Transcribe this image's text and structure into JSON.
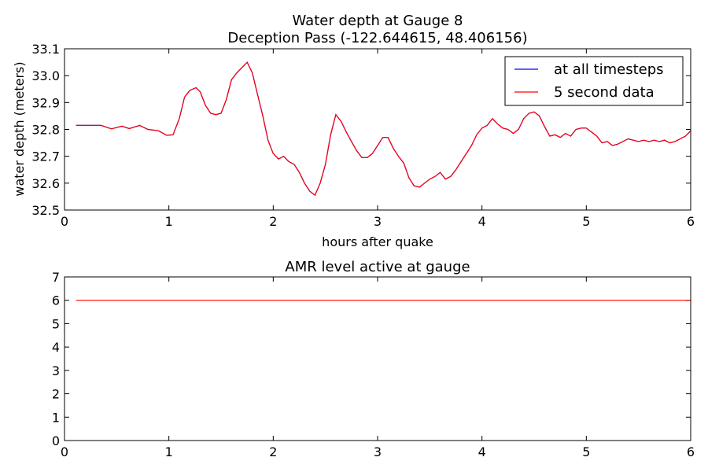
{
  "chart_data": [
    {
      "type": "line",
      "title": "Water depth at Gauge 8",
      "subtitle": "Deception Pass  (-122.644615, 48.406156)",
      "xlabel": "hours after quake",
      "ylabel": "water depth (meters)",
      "xlim": [
        0,
        6
      ],
      "ylim": [
        32.5,
        33.1
      ],
      "x_ticks": [
        "0",
        "1",
        "2",
        "3",
        "4",
        "5",
        "6"
      ],
      "y_ticks": [
        "32.5",
        "32.6",
        "32.7",
        "32.8",
        "32.9",
        "33.0",
        "33.1"
      ],
      "grid": false,
      "legend_position": "top-right",
      "x": [
        0.11,
        0.35,
        0.45,
        0.55,
        0.62,
        0.72,
        0.8,
        0.9,
        0.98,
        1.04,
        1.1,
        1.15,
        1.2,
        1.26,
        1.3,
        1.35,
        1.4,
        1.45,
        1.5,
        1.55,
        1.6,
        1.65,
        1.7,
        1.75,
        1.8,
        1.85,
        1.9,
        1.95,
        2.0,
        2.05,
        2.1,
        2.15,
        2.2,
        2.25,
        2.3,
        2.35,
        2.4,
        2.45,
        2.5,
        2.55,
        2.6,
        2.65,
        2.7,
        2.75,
        2.8,
        2.85,
        2.9,
        2.95,
        3.0,
        3.05,
        3.1,
        3.15,
        3.2,
        3.25,
        3.3,
        3.35,
        3.4,
        3.45,
        3.5,
        3.55,
        3.6,
        3.65,
        3.7,
        3.75,
        3.8,
        3.85,
        3.9,
        3.95,
        4.0,
        4.05,
        4.1,
        4.15,
        4.2,
        4.25,
        4.3,
        4.35,
        4.4,
        4.45,
        4.5,
        4.55,
        4.6,
        4.65,
        4.7,
        4.75,
        4.8,
        4.85,
        4.9,
        4.95,
        5.0,
        5.05,
        5.1,
        5.15,
        5.2,
        5.25,
        5.3,
        5.35,
        5.4,
        5.45,
        5.5,
        5.55,
        5.6,
        5.65,
        5.7,
        5.75,
        5.8,
        5.85,
        5.9,
        5.95,
        6.0
      ],
      "series": [
        {
          "name": "at all timesteps",
          "color": "#0000ff",
          "y": [
            32.815,
            32.815,
            32.802,
            32.812,
            32.803,
            32.815,
            32.8,
            32.795,
            32.778,
            32.78,
            32.84,
            32.92,
            32.945,
            32.955,
            32.94,
            32.89,
            32.86,
            32.855,
            32.86,
            32.91,
            32.985,
            33.01,
            33.03,
            33.05,
            33.01,
            32.93,
            32.85,
            32.76,
            32.71,
            32.69,
            32.7,
            32.68,
            32.67,
            32.64,
            32.6,
            32.57,
            32.555,
            32.6,
            32.67,
            32.78,
            32.855,
            32.83,
            32.79,
            32.755,
            32.72,
            32.695,
            32.695,
            32.71,
            32.74,
            32.77,
            32.77,
            32.73,
            32.7,
            32.675,
            32.62,
            32.59,
            32.585,
            32.6,
            32.615,
            32.625,
            32.64,
            32.615,
            32.625,
            32.65,
            32.68,
            32.71,
            32.74,
            32.78,
            32.805,
            32.815,
            32.84,
            32.82,
            32.805,
            32.8,
            32.785,
            32.8,
            32.84,
            32.86,
            32.865,
            32.85,
            32.81,
            32.775,
            32.78,
            32.77,
            32.785,
            32.775,
            32.8,
            32.805,
            32.805,
            32.79,
            32.775,
            32.75,
            32.755,
            32.74,
            32.745,
            32.755,
            32.765,
            32.76,
            32.755,
            32.76,
            32.755,
            32.76,
            32.755,
            32.76,
            32.75,
            32.755,
            32.765,
            32.775,
            32.795
          ]
        },
        {
          "name": "5 second data",
          "color": "#ff0000",
          "y": [
            32.815,
            32.815,
            32.802,
            32.812,
            32.803,
            32.815,
            32.8,
            32.795,
            32.778,
            32.78,
            32.84,
            32.92,
            32.945,
            32.955,
            32.94,
            32.89,
            32.86,
            32.855,
            32.86,
            32.91,
            32.985,
            33.01,
            33.03,
            33.05,
            33.01,
            32.93,
            32.85,
            32.76,
            32.71,
            32.69,
            32.7,
            32.68,
            32.67,
            32.64,
            32.6,
            32.57,
            32.555,
            32.6,
            32.67,
            32.78,
            32.855,
            32.83,
            32.79,
            32.755,
            32.72,
            32.695,
            32.695,
            32.71,
            32.74,
            32.77,
            32.77,
            32.73,
            32.7,
            32.675,
            32.62,
            32.59,
            32.585,
            32.6,
            32.615,
            32.625,
            32.64,
            32.615,
            32.625,
            32.65,
            32.68,
            32.71,
            32.74,
            32.78,
            32.805,
            32.815,
            32.84,
            32.82,
            32.805,
            32.8,
            32.785,
            32.8,
            32.84,
            32.86,
            32.865,
            32.85,
            32.81,
            32.775,
            32.78,
            32.77,
            32.785,
            32.775,
            32.8,
            32.805,
            32.805,
            32.79,
            32.775,
            32.75,
            32.755,
            32.74,
            32.745,
            32.755,
            32.765,
            32.76,
            32.755,
            32.76,
            32.755,
            32.76,
            32.755,
            32.76,
            32.75,
            32.755,
            32.765,
            32.775,
            32.795
          ]
        }
      ]
    },
    {
      "type": "line",
      "title": "AMR level active at gauge",
      "xlim": [
        0,
        6
      ],
      "ylim": [
        0,
        7
      ],
      "x_ticks": [
        "0",
        "1",
        "2",
        "3",
        "4",
        "5",
        "6"
      ],
      "y_ticks": [
        "0",
        "1",
        "2",
        "3",
        "4",
        "5",
        "6",
        "7"
      ],
      "grid": false,
      "x": [
        0.11,
        6.0
      ],
      "series": [
        {
          "color": "#ff0000",
          "y": [
            6,
            6
          ]
        }
      ]
    }
  ]
}
